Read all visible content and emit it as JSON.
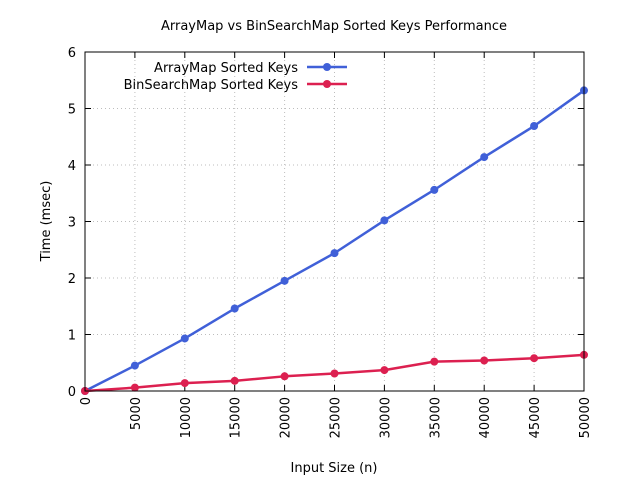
{
  "chart_data": {
    "type": "line",
    "title": "ArrayMap vs BinSearchMap Sorted Keys Performance",
    "xlabel": "Input Size (n)",
    "ylabel": "Time (msec)",
    "xlim": [
      0,
      50000
    ],
    "ylim": [
      0,
      6
    ],
    "x_ticks": [
      "0",
      "5000",
      "10000",
      "15000",
      "20000",
      "25000",
      "30000",
      "35000",
      "40000",
      "45000",
      "50000"
    ],
    "y_ticks": [
      "0",
      "1",
      "2",
      "3",
      "4",
      "5",
      "6"
    ],
    "grid": true,
    "legend_position": "top-left",
    "x": [
      0,
      5000,
      10000,
      15000,
      20000,
      25000,
      30000,
      35000,
      40000,
      45000,
      50000
    ],
    "series": [
      {
        "name": "ArrayMap Sorted Keys",
        "color": "#4060d8",
        "values": [
          0.0,
          0.45,
          0.93,
          1.46,
          1.95,
          2.44,
          3.02,
          3.56,
          4.14,
          4.69,
          5.32
        ]
      },
      {
        "name": "BinSearchMap Sorted Keys",
        "color": "#dc2050",
        "values": [
          0.0,
          0.06,
          0.14,
          0.18,
          0.26,
          0.31,
          0.37,
          0.52,
          0.54,
          0.58,
          0.64
        ]
      }
    ]
  }
}
